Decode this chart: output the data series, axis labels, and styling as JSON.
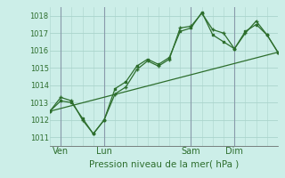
{
  "background_color": "#cceee8",
  "grid_color": "#aad4cc",
  "line_color": "#2d6e2d",
  "title": "Pression niveau de la mer( hPa )",
  "ylabel_ticks": [
    1011,
    1012,
    1013,
    1014,
    1015,
    1016,
    1017,
    1018
  ],
  "xlim": [
    0,
    10.5
  ],
  "ylim": [
    1010.5,
    1018.5
  ],
  "x_ticks": [
    0.5,
    2.5,
    6.5,
    8.5
  ],
  "x_tick_labels": [
    "Ven",
    "Lun",
    "Sam",
    "Dim"
  ],
  "vline_positions": [
    0.5,
    2.5,
    6.5,
    8.5
  ],
  "series1_x": [
    0.0,
    0.5,
    1.0,
    1.5,
    2.0,
    2.5,
    3.0,
    3.5,
    4.0,
    4.5,
    5.0,
    5.5,
    6.0,
    6.5,
    7.0,
    7.5,
    8.0,
    8.5,
    9.0,
    9.5,
    10.0,
    10.5
  ],
  "series1_y": [
    1012.5,
    1013.3,
    1013.1,
    1012.0,
    1011.2,
    1012.0,
    1013.5,
    1013.9,
    1014.9,
    1015.4,
    1015.1,
    1015.5,
    1017.3,
    1017.4,
    1018.15,
    1017.2,
    1017.0,
    1016.1,
    1017.0,
    1017.7,
    1016.9,
    1015.9
  ],
  "series2_x": [
    0.0,
    0.5,
    1.0,
    1.5,
    2.0,
    2.5,
    3.0,
    3.5,
    4.0,
    4.5,
    5.0,
    5.5,
    6.0,
    6.5,
    7.0,
    7.5,
    8.0,
    8.5,
    9.0,
    9.5,
    10.0,
    10.5
  ],
  "series2_y": [
    1012.5,
    1013.1,
    1013.0,
    1012.1,
    1011.2,
    1012.0,
    1013.8,
    1014.2,
    1015.1,
    1015.5,
    1015.2,
    1015.6,
    1017.1,
    1017.3,
    1018.2,
    1016.9,
    1016.5,
    1016.1,
    1017.1,
    1017.5,
    1016.9,
    1015.9
  ],
  "series3_x": [
    0.0,
    10.5
  ],
  "series3_y": [
    1012.5,
    1015.9
  ]
}
